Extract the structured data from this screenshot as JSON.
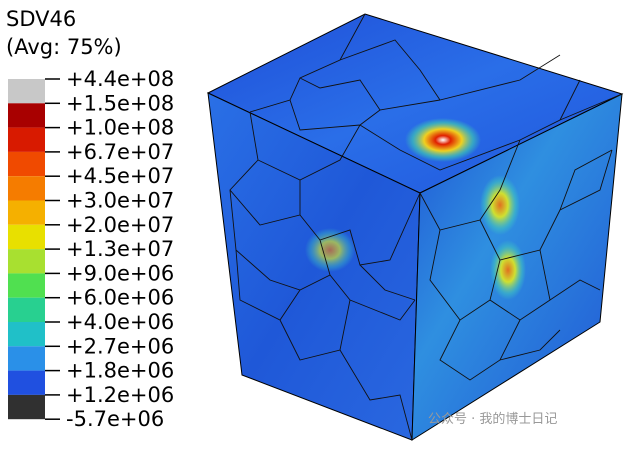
{
  "legend": {
    "title": "SDV46",
    "subtitle": "(Avg: 75%)",
    "labels": [
      "+4.4e+08",
      "+1.5e+08",
      "+1.0e+08",
      "+6.7e+07",
      "+4.5e+07",
      "+3.0e+07",
      "+2.0e+07",
      "+1.3e+07",
      "+9.0e+06",
      "+6.0e+06",
      "+4.0e+06",
      "+2.7e+06",
      "+1.8e+06",
      "+1.2e+06",
      "-5.7e+06"
    ]
  },
  "watermark": "公众号 · 我的博士日记"
}
